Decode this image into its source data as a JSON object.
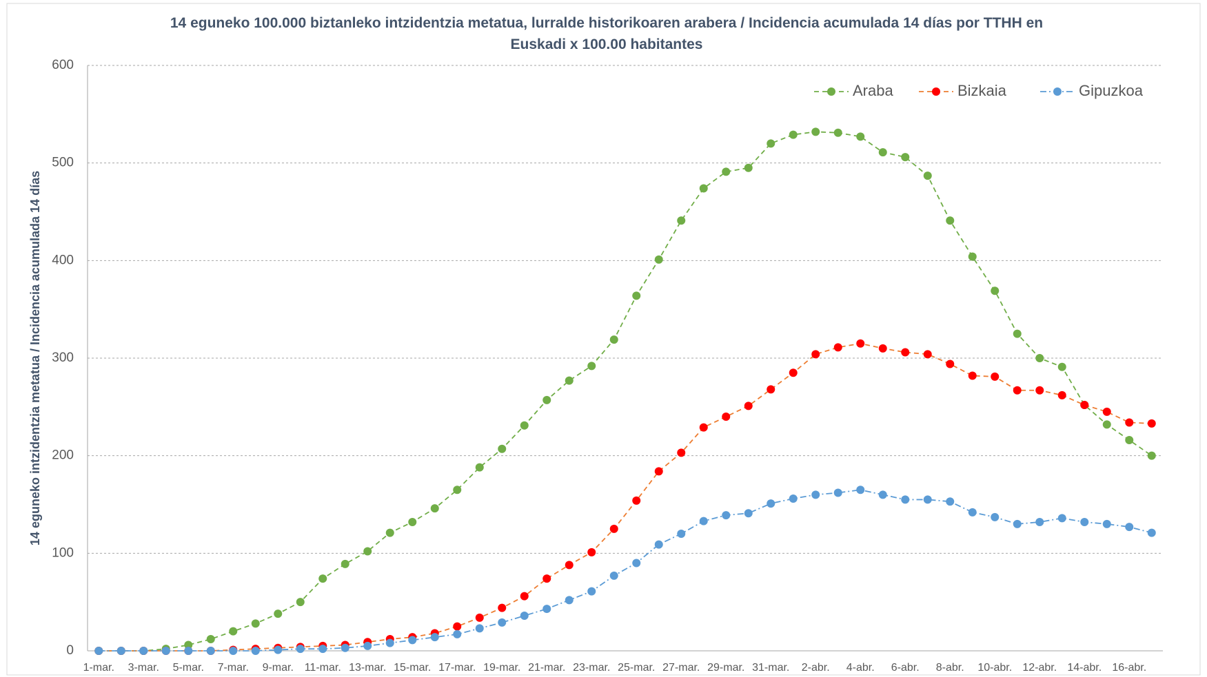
{
  "chart_data": {
    "type": "line",
    "title": "14 eguneko 100.000 biztanleko intzidentzia metatua, lurralde historikoaren arabera / Incidencia acumulada 14 días por TTHH en Euskadi x 100.00 habitantes",
    "y_label": "14 eguneko intzidentzia metatua / Incidencia acumulada 14 días",
    "categories": [
      "1-mar.",
      null,
      "3-mar.",
      null,
      "5-mar.",
      null,
      "7-mar.",
      null,
      "9-mar.",
      null,
      "11-mar.",
      null,
      "13-mar.",
      null,
      "15-mar.",
      null,
      "17-mar.",
      null,
      "19-mar.",
      null,
      "21-mar.",
      null,
      "23-mar.",
      null,
      "25-mar.",
      null,
      "27-mar.",
      null,
      "29-mar.",
      null,
      "31-mar.",
      null,
      "2-abr.",
      null,
      "4-abr.",
      null,
      "6-abr.",
      null,
      "8-abr.",
      null,
      "10-abr.",
      null,
      "12-abr.",
      null,
      "14-abr.",
      null,
      "16-abr.",
      null
    ],
    "series": [
      {
        "name": "Araba",
        "color": "#70ad47",
        "marker_color": "#70ad47",
        "values": [
          0,
          0,
          0,
          2,
          6,
          12,
          20,
          28,
          38,
          50,
          74,
          89,
          102,
          121,
          132,
          146,
          165,
          188,
          207,
          231,
          257,
          277,
          292,
          319,
          364,
          401,
          441,
          474,
          491,
          495,
          520,
          529,
          532,
          531,
          527,
          511,
          506,
          487,
          441,
          404,
          369,
          325,
          300,
          291,
          252,
          232,
          216,
          200
        ]
      },
      {
        "name": "Bizkaia",
        "color": "#ed7d31",
        "marker_color": "#ff0000",
        "values": [
          0,
          0,
          0,
          0,
          0,
          0,
          1,
          2,
          3,
          4,
          5,
          6,
          9,
          12,
          14,
          18,
          25,
          34,
          44,
          56,
          74,
          88,
          101,
          125,
          154,
          184,
          203,
          229,
          240,
          251,
          268,
          285,
          304,
          311,
          315,
          310,
          306,
          304,
          294,
          282,
          281,
          267,
          267,
          262,
          252,
          245,
          234,
          233
        ]
      },
      {
        "name": "Gipuzkoa",
        "color": "#5b9bd5",
        "marker_color": "#5b9bd5",
        "values": [
          0,
          0,
          0,
          0,
          0,
          0,
          0,
          0,
          1,
          2,
          2,
          3,
          5,
          8,
          11,
          14,
          17,
          23,
          29,
          36,
          43,
          52,
          61,
          77,
          90,
          109,
          120,
          133,
          139,
          141,
          151,
          156,
          160,
          162,
          165,
          160,
          155,
          155,
          153,
          142,
          137,
          130,
          132,
          136,
          132,
          130,
          127,
          121
        ]
      }
    ],
    "ylim": [
      0,
      600
    ],
    "yticks": [
      0,
      100,
      200,
      300,
      400,
      500,
      600
    ],
    "grid": true,
    "legend": "top-right"
  }
}
